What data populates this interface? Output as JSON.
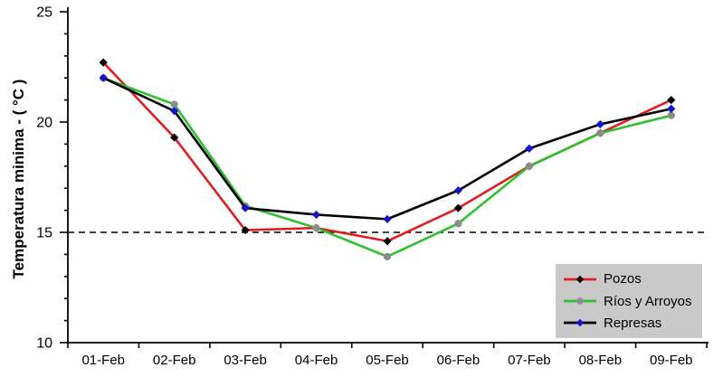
{
  "chart_data": {
    "type": "line",
    "title": "",
    "ylabel": "Temperatura minima - ( °C )",
    "xlabel": "",
    "categories": [
      "01-Feb",
      "02-Feb",
      "03-Feb",
      "04-Feb",
      "05-Feb",
      "06-Feb",
      "07-Feb",
      "08-Feb",
      "09-Feb"
    ],
    "ylim": [
      10,
      25
    ],
    "yticks_major": [
      10,
      15,
      20,
      25
    ],
    "ytick_minor_step": 1,
    "grid": false,
    "reference_line": {
      "y": 15,
      "style": "dashed",
      "color": "#000000"
    },
    "legend": {
      "position": "bottom-right",
      "background": "#c9c9c9"
    },
    "series": [
      {
        "name": "Pozos",
        "line_color": "#df1f1f",
        "marker_shape": "diamond",
        "marker_color": "#000000",
        "values": [
          22.7,
          19.3,
          15.1,
          15.2,
          14.6,
          16.1,
          18.0,
          19.5,
          21.0
        ]
      },
      {
        "name": "Ríos y Arroyos",
        "line_color": "#2fbf2f",
        "marker_shape": "circle",
        "marker_color": "#8c8c8c",
        "values": [
          22.0,
          20.8,
          16.2,
          15.2,
          13.9,
          15.4,
          18.0,
          19.5,
          20.3
        ]
      },
      {
        "name": "Represas",
        "line_color": "#000000",
        "marker_shape": "diamond",
        "marker_color": "#1414d0",
        "values": [
          22.0,
          20.5,
          16.1,
          15.8,
          15.6,
          16.9,
          18.8,
          19.9,
          20.6
        ]
      }
    ]
  }
}
